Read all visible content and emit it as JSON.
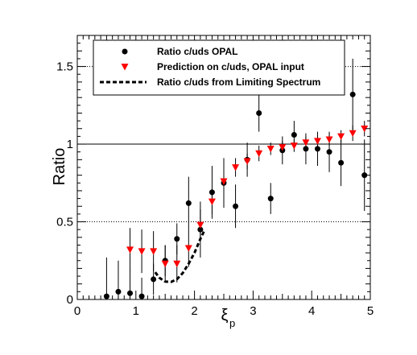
{
  "chart_data": {
    "type": "scatter",
    "xlabel": "ξ",
    "xlabel_subscript": "p",
    "ylabel": "Ratio",
    "xlim": [
      0,
      5
    ],
    "ylim": [
      0,
      1.7
    ],
    "x_ticks": [
      "0",
      "1",
      "2",
      "3",
      "4",
      "5"
    ],
    "y_ticks": [
      "0",
      "0.5",
      "1",
      "1.5"
    ],
    "reference_lines": [
      {
        "y": 1.0,
        "style": "solid"
      },
      {
        "y": 0.5,
        "style": "dotted"
      },
      {
        "y": 1.5,
        "style": "dotted"
      }
    ],
    "legend_position": "top",
    "series": [
      {
        "name": "Ratio c/uds OPAL",
        "marker": "circle",
        "color": "#000000",
        "points": [
          {
            "x": 0.5,
            "y": 0.02,
            "err": 0.25
          },
          {
            "x": 0.7,
            "y": 0.05,
            "err": 0.2
          },
          {
            "x": 0.9,
            "y": 0.04,
            "err": 0.16
          },
          {
            "x": 1.1,
            "y": 0.02,
            "err": 0.12
          },
          {
            "x": 1.3,
            "y": 0.13,
            "err": 0.1
          },
          {
            "x": 1.5,
            "y": 0.25,
            "err": 0.1
          },
          {
            "x": 1.7,
            "y": 0.39,
            "err": 0.1
          },
          {
            "x": 1.9,
            "y": 0.62,
            "err": 0.17
          },
          {
            "x": 2.1,
            "y": 0.45,
            "err": 0.18
          },
          {
            "x": 2.3,
            "y": 0.69,
            "err": 0.17
          },
          {
            "x": 2.5,
            "y": 0.75,
            "err": 0.16
          },
          {
            "x": 2.7,
            "y": 0.6,
            "err": 0.14
          },
          {
            "x": 2.9,
            "y": 0.9,
            "err": 0.11
          },
          {
            "x": 3.1,
            "y": 1.2,
            "err": 0.12
          },
          {
            "x": 3.3,
            "y": 0.65,
            "err": 0.1
          },
          {
            "x": 3.5,
            "y": 0.96,
            "err": 0.09
          },
          {
            "x": 3.7,
            "y": 1.06,
            "err": 0.09
          },
          {
            "x": 3.9,
            "y": 0.97,
            "err": 0.1
          },
          {
            "x": 4.1,
            "y": 0.97,
            "err": 0.11
          },
          {
            "x": 4.3,
            "y": 0.95,
            "err": 0.13
          },
          {
            "x": 4.5,
            "y": 0.88,
            "err": 0.15
          },
          {
            "x": 4.7,
            "y": 1.32,
            "err": 0.23
          },
          {
            "x": 4.9,
            "y": 0.8,
            "err": 0.23
          }
        ]
      },
      {
        "name": "Prediction on c/uds, OPAL input",
        "marker": "triangle-down",
        "color": "#ff0000",
        "points": [
          {
            "x": 0.9,
            "y": 0.32,
            "err": 0.14
          },
          {
            "x": 1.1,
            "y": 0.31,
            "err": 0.14
          },
          {
            "x": 1.3,
            "y": 0.31,
            "err": 0.13
          },
          {
            "x": 1.5,
            "y": 0.23,
            "err": 0.12
          },
          {
            "x": 1.7,
            "y": 0.23,
            "err": 0.12
          },
          {
            "x": 1.9,
            "y": 0.33,
            "err": 0.12
          },
          {
            "x": 2.1,
            "y": 0.48,
            "err": 0.1
          },
          {
            "x": 2.3,
            "y": 0.63,
            "err": 0.08
          },
          {
            "x": 2.5,
            "y": 0.76,
            "err": 0.07
          },
          {
            "x": 2.7,
            "y": 0.85,
            "err": 0.06
          },
          {
            "x": 2.9,
            "y": 0.89,
            "err": 0.05
          },
          {
            "x": 3.1,
            "y": 0.94,
            "err": 0.05
          },
          {
            "x": 3.3,
            "y": 0.97,
            "err": 0.04
          },
          {
            "x": 3.5,
            "y": 0.98,
            "err": 0.04
          },
          {
            "x": 3.7,
            "y": 0.99,
            "err": 0.04
          },
          {
            "x": 3.9,
            "y": 1.01,
            "err": 0.04
          },
          {
            "x": 4.1,
            "y": 1.02,
            "err": 0.04
          },
          {
            "x": 4.3,
            "y": 1.03,
            "err": 0.04
          },
          {
            "x": 4.5,
            "y": 1.05,
            "err": 0.04
          },
          {
            "x": 4.7,
            "y": 1.07,
            "err": 0.05
          },
          {
            "x": 4.9,
            "y": 1.1,
            "err": 0.05
          }
        ]
      },
      {
        "name": "Ratio c/uds from Limiting Spectrum",
        "marker": "dashed-line",
        "color": "#000000",
        "points": [
          {
            "x": 1.33,
            "y": 0.175
          },
          {
            "x": 1.4,
            "y": 0.14
          },
          {
            "x": 1.5,
            "y": 0.115
          },
          {
            "x": 1.6,
            "y": 0.113
          },
          {
            "x": 1.7,
            "y": 0.13
          },
          {
            "x": 1.8,
            "y": 0.17
          },
          {
            "x": 1.9,
            "y": 0.23
          },
          {
            "x": 2.0,
            "y": 0.3
          },
          {
            "x": 2.1,
            "y": 0.39
          },
          {
            "x": 2.17,
            "y": 0.445
          }
        ]
      }
    ]
  }
}
